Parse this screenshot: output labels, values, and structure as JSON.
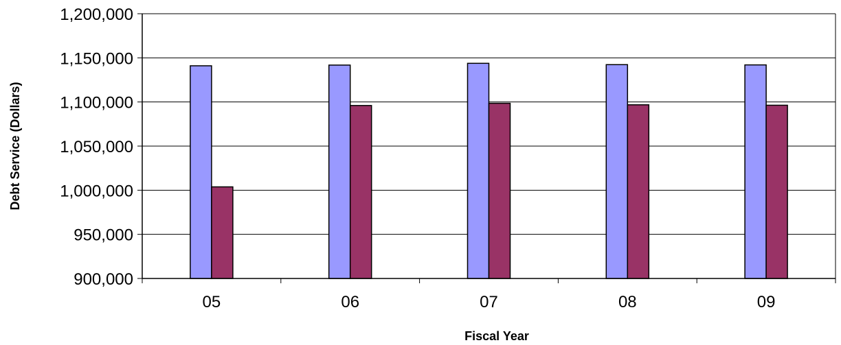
{
  "chart_data": {
    "type": "bar",
    "title": "",
    "xlabel": "Fiscal Year",
    "ylabel": "Debt Service (Dollars)",
    "categories": [
      "05",
      "06",
      "07",
      "08",
      "09"
    ],
    "series": [
      {
        "color": "#9999ff",
        "values": [
          1141000,
          1141800,
          1143800,
          1142300,
          1142000
        ]
      },
      {
        "color": "#993366",
        "values": [
          1003800,
          1096000,
          1098500,
          1096800,
          1096300
        ]
      }
    ],
    "ylim": [
      900000,
      1200000
    ],
    "yticks": [
      900000,
      950000,
      1000000,
      1050000,
      1100000,
      1150000,
      1200000
    ],
    "ytick_labels": [
      "900,000",
      "950,000",
      "1,000,000",
      "1,050,000",
      "1,100,000",
      "1,150,000",
      "1,200,000"
    ],
    "grid": true,
    "legend": "none"
  }
}
